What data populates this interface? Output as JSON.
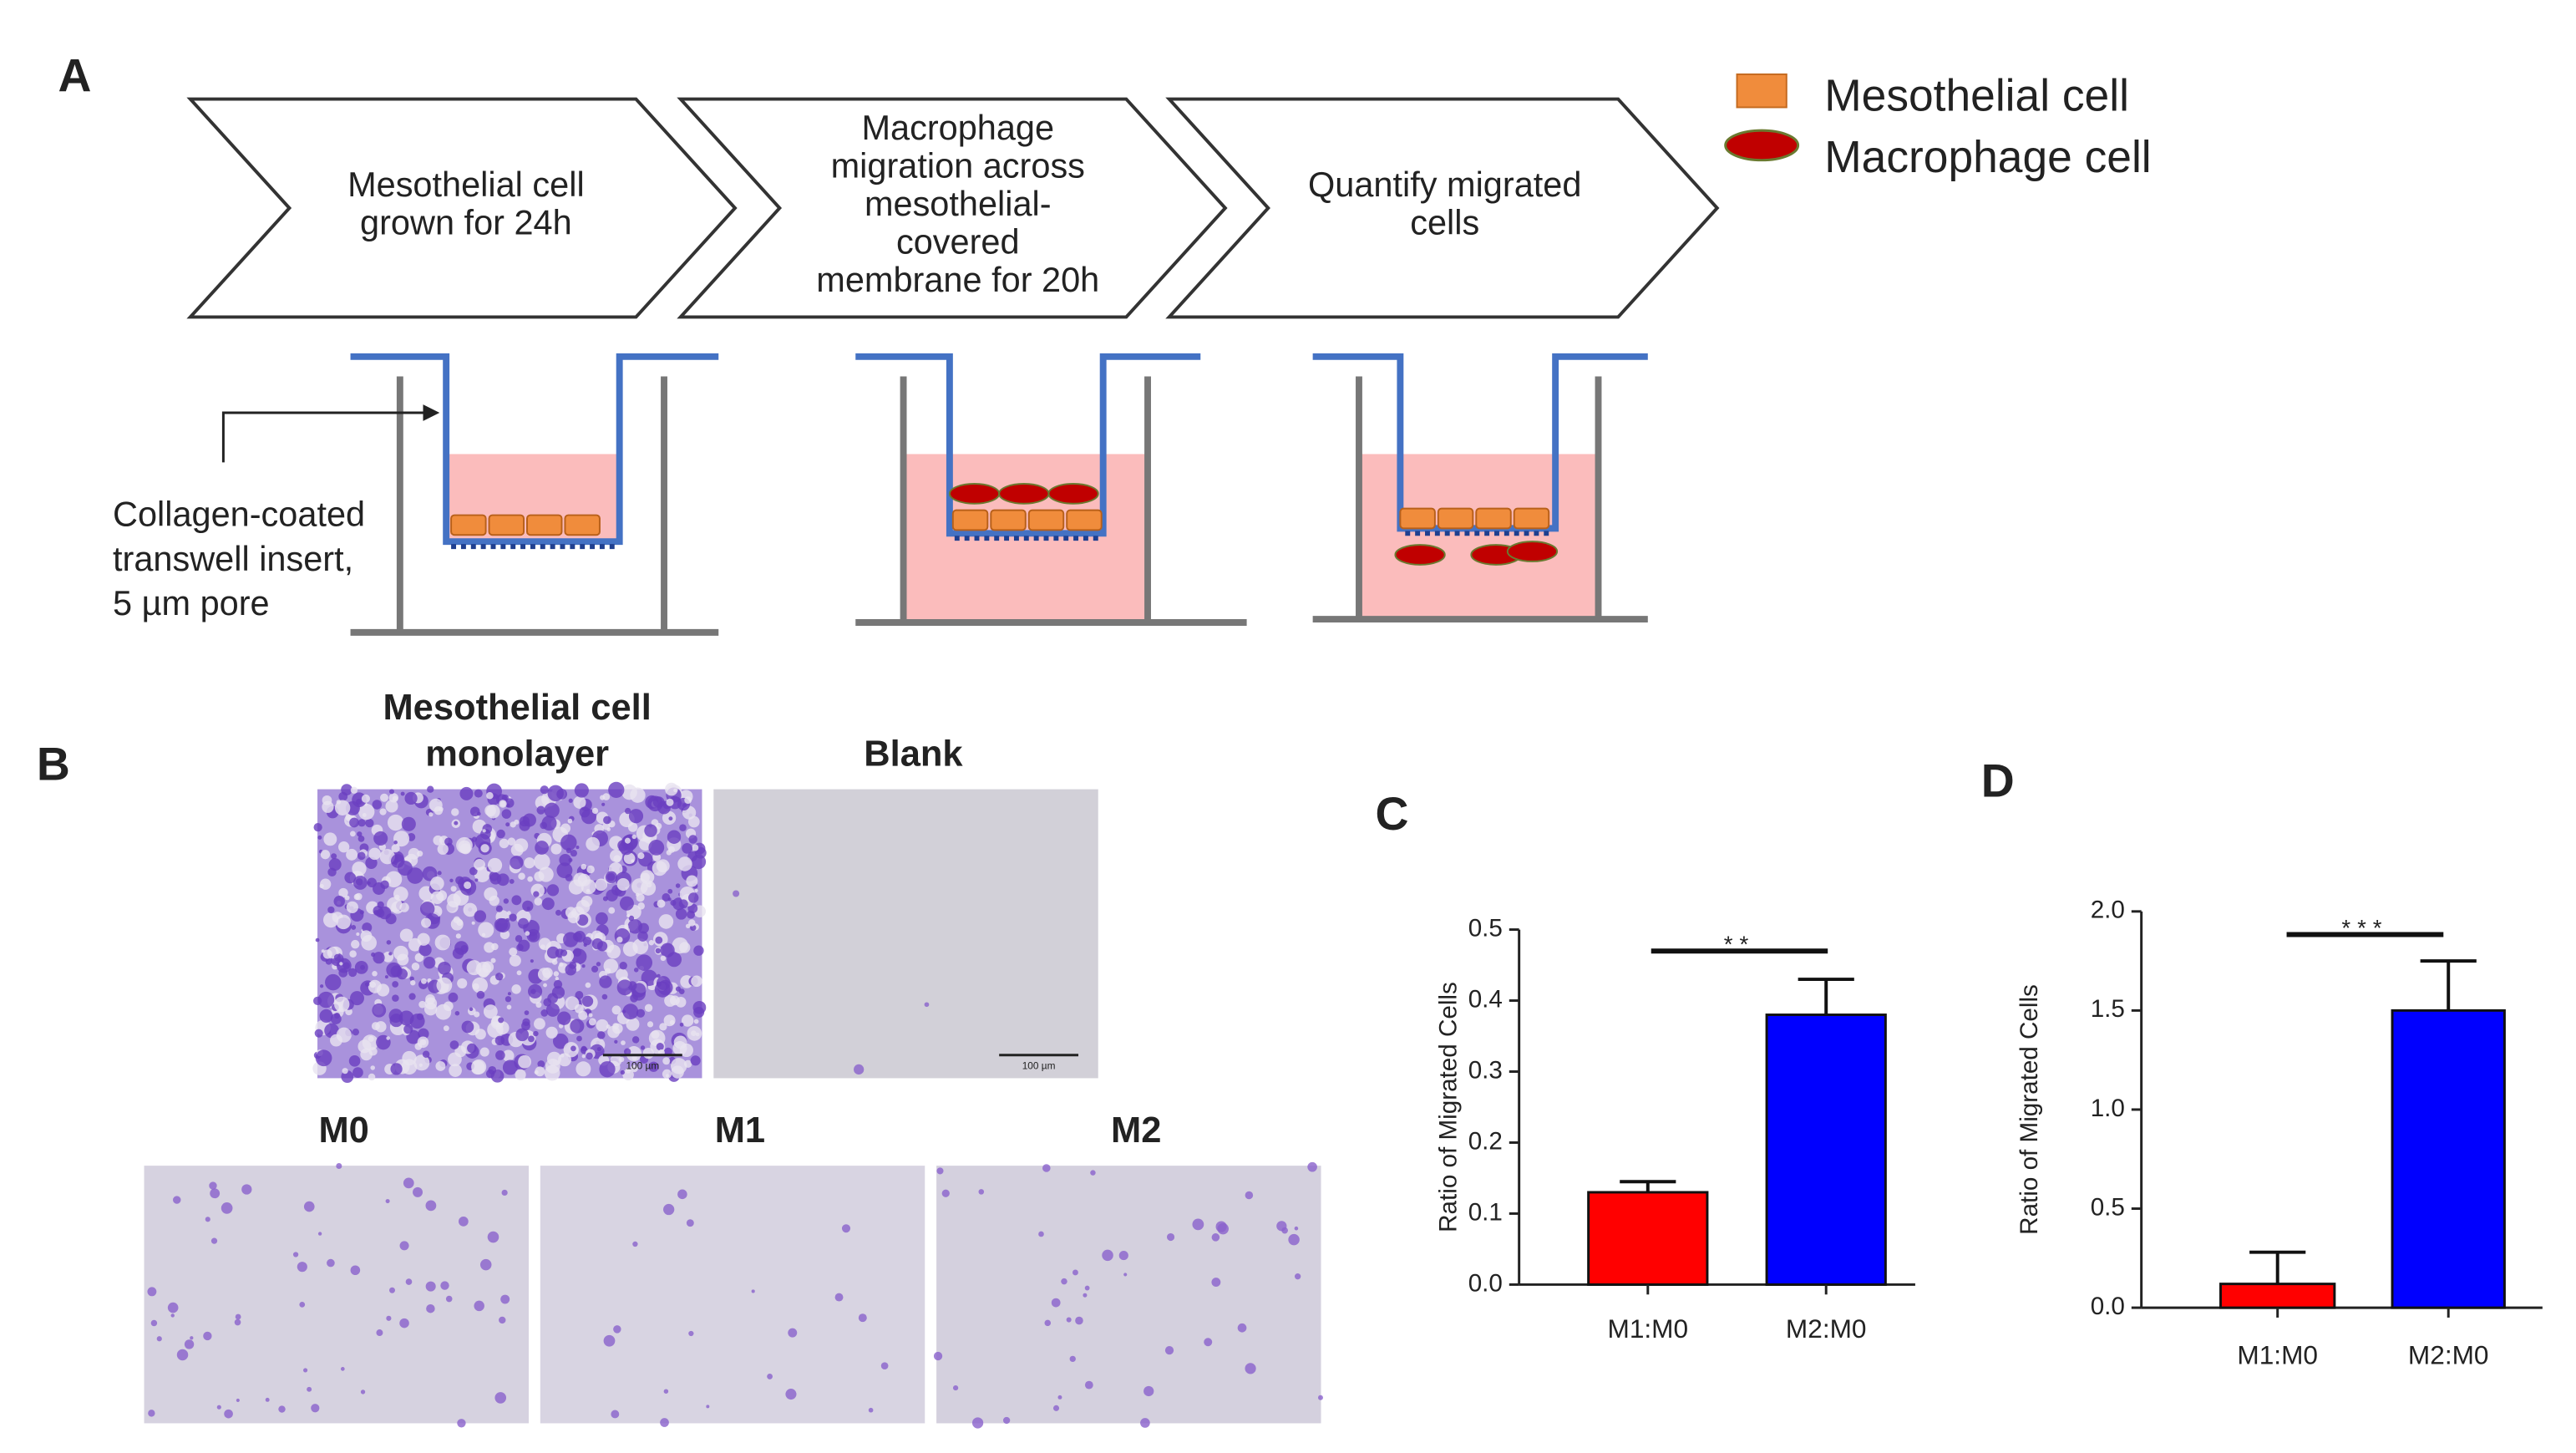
{
  "panel_a": {
    "label": "A",
    "steps": [
      {
        "lines": [
          "Mesothelial cell",
          "grown for 24h"
        ]
      },
      {
        "lines": [
          "Macrophage",
          "migration across",
          "mesothelial-",
          "covered",
          "membrane for 20h"
        ]
      },
      {
        "lines": [
          "Quantify migrated",
          "cells"
        ]
      }
    ],
    "legend": [
      "Mesothelial cell",
      "Macrophage cell"
    ],
    "insert_label": [
      "Collagen-coated",
      "transwell insert,",
      "5 µm pore"
    ]
  },
  "panel_b": {
    "label": "B",
    "images": [
      {
        "title": [
          "Mesothelial cell",
          "monolayer"
        ],
        "scale_bar": "100 µm"
      },
      {
        "title": [
          "Blank"
        ],
        "scale_bar": "100 µm"
      },
      {
        "title": [
          "M0"
        ]
      },
      {
        "title": [
          "M1"
        ]
      },
      {
        "title": [
          "M2"
        ]
      }
    ]
  },
  "chart_data": [
    {
      "type": "bar",
      "label": "C",
      "y_label": "Ratio of Migrated Cells",
      "categories": [
        "M1:M0",
        "M2:M0"
      ],
      "values": [
        0.13,
        0.38
      ],
      "errors": [
        0.015,
        0.05
      ],
      "colors": [
        "#ff0000",
        "#0000ff"
      ],
      "ylim": [
        0,
        0.5
      ],
      "yticks": [
        {
          "value": 0,
          "label": "0.0"
        },
        0.1,
        0.2,
        0.3,
        0.4,
        0.5
      ],
      "annotation": "**"
    },
    {
      "type": "bar",
      "label": "D",
      "y_label": "Ratio of Migrated Cells",
      "categories": [
        "M1:M0",
        "M2:M0"
      ],
      "values": [
        0.12,
        1.5
      ],
      "errors": [
        0.16,
        0.25
      ],
      "colors": [
        "#ff0000",
        "#0000ff"
      ],
      "ylim": [
        0,
        2
      ],
      "yticks": [
        {
          "value": 0,
          "label": "0.0"
        },
        0.5,
        {
          "value": 1,
          "label": "1.0"
        },
        1.5,
        {
          "value": 2,
          "label": "2.0"
        }
      ],
      "annotation": "***"
    }
  ]
}
